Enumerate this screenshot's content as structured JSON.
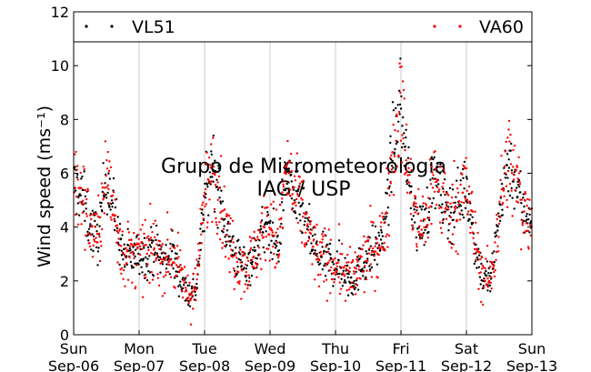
{
  "chart_data": {
    "type": "scatter",
    "title": "",
    "xlabel": "",
    "ylabel": "Wind speed (ms⁻¹)",
    "ylim": [
      0,
      12
    ],
    "yticks": [
      0,
      2,
      4,
      6,
      8,
      10,
      12
    ],
    "xlim": [
      "Sep-06",
      "Sep-13"
    ],
    "xticks": [
      {
        "day": "Sun",
        "date": "Sep-06"
      },
      {
        "day": "Mon",
        "date": "Sep-07"
      },
      {
        "day": "Tue",
        "date": "Sep-08"
      },
      {
        "day": "Wed",
        "date": "Sep-09"
      },
      {
        "day": "Thu",
        "date": "Sep-10"
      },
      {
        "day": "Fri",
        "date": "Sep-11"
      },
      {
        "day": "Sat",
        "date": "Sep-12"
      },
      {
        "day": "Sun",
        "date": "Sep-13"
      }
    ],
    "grid": "vertical",
    "legend_position": "top",
    "watermark": [
      "Grupo de Micrometeorologia",
      "IAG / USP"
    ],
    "series": [
      {
        "name": "VL51",
        "color": "#000000"
      },
      {
        "name": "VA60",
        "color": "#ff0000"
      }
    ],
    "daily_profile_hour_offsets": [
      0,
      3,
      6,
      9,
      12,
      15,
      18,
      21
    ],
    "approx_mean_wind_by_day": [
      {
        "date": "Sep-06",
        "values": [
          5.6,
          5.2,
          4.0,
          3.6,
          6.0,
          4.5,
          3.0,
          2.9
        ]
      },
      {
        "date": "Sep-07",
        "values": [
          3.0,
          3.0,
          3.2,
          2.8,
          3.0,
          2.2,
          1.5,
          1.8
        ]
      },
      {
        "date": "Sep-08",
        "values": [
          5.0,
          6.5,
          4.8,
          3.5,
          2.8,
          2.6,
          2.8,
          3.8
        ]
      },
      {
        "date": "Sep-09",
        "values": [
          4.0,
          3.2,
          6.2,
          5.0,
          4.5,
          3.5,
          2.8,
          2.8
        ]
      },
      {
        "date": "Sep-10",
        "values": [
          2.6,
          2.4,
          2.0,
          2.5,
          3.0,
          3.2,
          3.8,
          7.0
        ]
      },
      {
        "date": "Sep-11",
        "values": [
          8.5,
          5.5,
          4.0,
          4.2,
          6.0,
          5.0,
          4.5,
          5.0
        ]
      },
      {
        "date": "Sep-12",
        "values": [
          5.5,
          3.5,
          2.2,
          2.0,
          4.5,
          6.5,
          5.8,
          4.5
        ]
      }
    ]
  }
}
